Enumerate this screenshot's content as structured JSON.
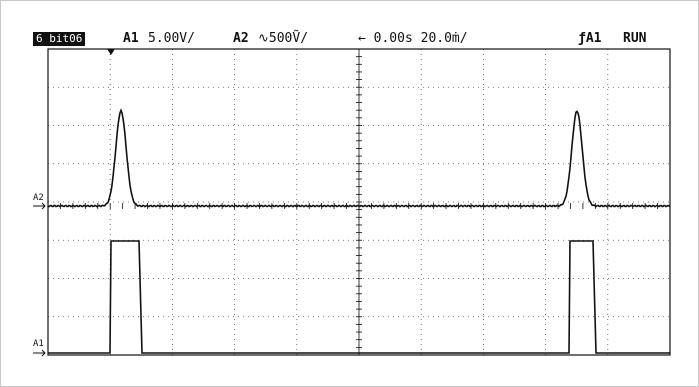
{
  "header": {
    "badge": "6 bit06",
    "ch1_name": "A1",
    "ch1_scale": "5.00V/",
    "ch2_name": "A2",
    "ch2_scale": "∿500Ṽ/",
    "timebase": "← 0.00s 20.0ṁ/",
    "trigger": "ƒA1",
    "run_state": "RUN"
  },
  "channels": {
    "ch2_label": "A2",
    "ch1_label": "A1"
  },
  "grid": {
    "divisions_x": 10,
    "divisions_y": 8
  },
  "colors": {
    "trace": "#111111",
    "grid": "#555555",
    "background": "#ffffff"
  }
}
